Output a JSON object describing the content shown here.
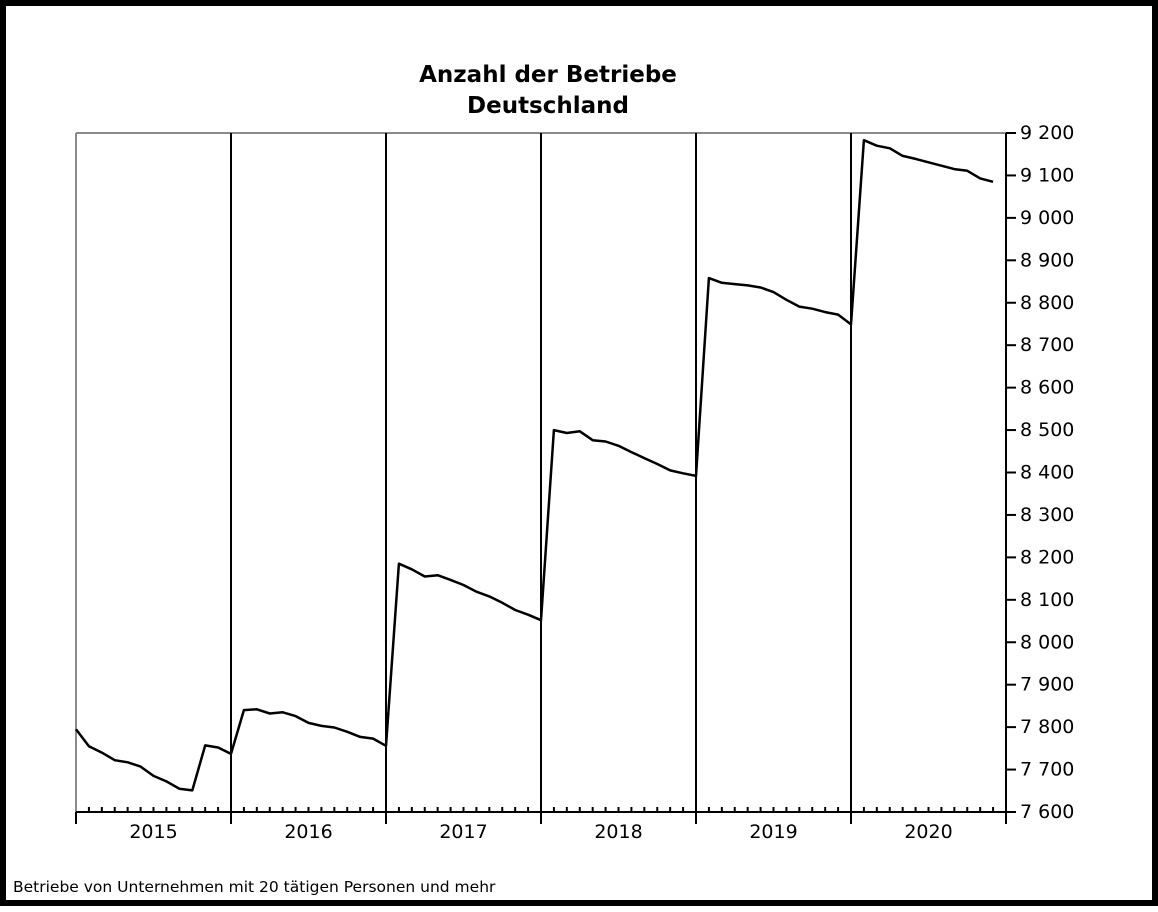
{
  "chart_data": {
    "type": "line",
    "title": "Anzahl der Betriebe",
    "subtitle": "Deutschland",
    "footnote": "Betriebe von Unternehmen mit 20 tätigen Personen und mehr",
    "y_axis_position": "right",
    "ylim": [
      7600,
      9200
    ],
    "ytick_values": [
      7600,
      7700,
      7800,
      7900,
      8000,
      8100,
      8200,
      8300,
      8400,
      8500,
      8600,
      8700,
      8800,
      8900,
      9000,
      9100,
      9200
    ],
    "ytick_labels": [
      "7 600",
      "7 700",
      "7 800",
      "7 900",
      "8 000",
      "8 100",
      "8 200",
      "8 300",
      "8 400",
      "8 500",
      "8 600",
      "8 700",
      "8 800",
      "8 900",
      "9 000",
      "9 100",
      "9 200"
    ],
    "year_labels": [
      "2015",
      "2016",
      "2017",
      "2018",
      "2019",
      "2020"
    ],
    "months_per_year": 12,
    "series": [
      {
        "values": [
          7795,
          7755,
          7740,
          7722,
          7717,
          7707,
          7685,
          7672,
          7655,
          7651,
          7757,
          7752,
          7737,
          7840,
          7842,
          7832,
          7835,
          7826,
          7810,
          7803,
          7799,
          7789,
          7777,
          7773,
          7756,
          8185,
          8172,
          8155,
          8158,
          8147,
          8135,
          8119,
          8108,
          8093,
          8076,
          8065,
          8052,
          8500,
          8493,
          8497,
          8476,
          8473,
          8463,
          8448,
          8434,
          8420,
          8405,
          8398,
          8392,
          8858,
          8847,
          8844,
          8841,
          8836,
          8825,
          8807,
          8791,
          8786,
          8778,
          8772,
          8749,
          9183,
          9170,
          9164,
          9146,
          9139,
          9131,
          9123,
          9115,
          9111,
          9093,
          9085
        ]
      }
    ]
  }
}
